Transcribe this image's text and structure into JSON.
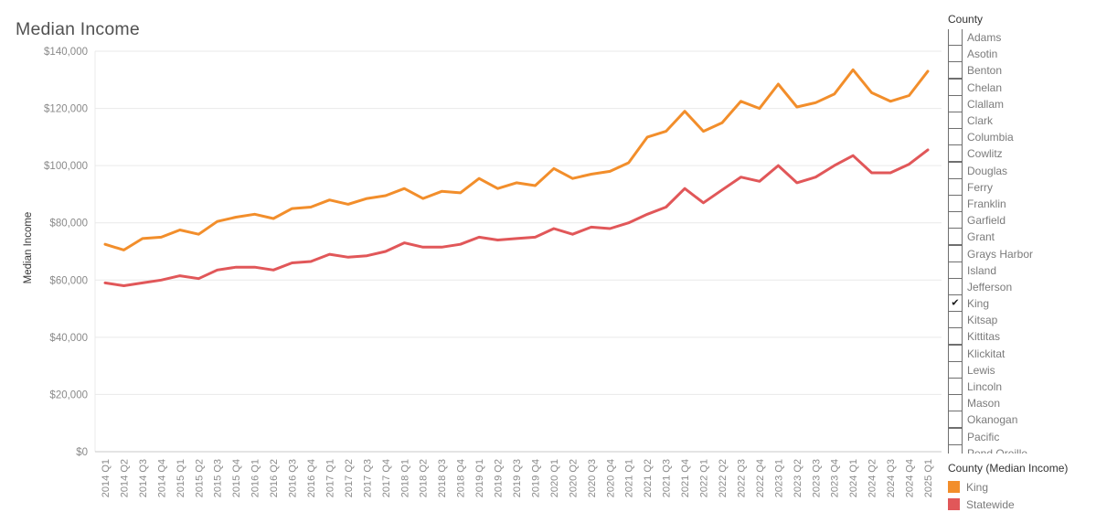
{
  "title": "Median Income",
  "filter_panel": {
    "header": "County",
    "items": [
      {
        "label": "Adams",
        "checked": false
      },
      {
        "label": "Asotin",
        "checked": false
      },
      {
        "label": "Benton",
        "checked": false
      },
      {
        "label": "Chelan",
        "checked": false
      },
      {
        "label": "Clallam",
        "checked": false
      },
      {
        "label": "Clark",
        "checked": false
      },
      {
        "label": "Columbia",
        "checked": false
      },
      {
        "label": "Cowlitz",
        "checked": false
      },
      {
        "label": "Douglas",
        "checked": false
      },
      {
        "label": "Ferry",
        "checked": false
      },
      {
        "label": "Franklin",
        "checked": false
      },
      {
        "label": "Garfield",
        "checked": false
      },
      {
        "label": "Grant",
        "checked": false
      },
      {
        "label": "Grays Harbor",
        "checked": false
      },
      {
        "label": "Island",
        "checked": false
      },
      {
        "label": "Jefferson",
        "checked": false
      },
      {
        "label": "King",
        "checked": true
      },
      {
        "label": "Kitsap",
        "checked": false
      },
      {
        "label": "Kittitas",
        "checked": false
      },
      {
        "label": "Klickitat",
        "checked": false
      },
      {
        "label": "Lewis",
        "checked": false
      },
      {
        "label": "Lincoln",
        "checked": false
      },
      {
        "label": "Mason",
        "checked": false
      },
      {
        "label": "Okanogan",
        "checked": false
      },
      {
        "label": "Pacific",
        "checked": false
      },
      {
        "label": "Pend Oreille",
        "checked": false
      }
    ]
  },
  "legend": {
    "header": "County (Median Income)",
    "entries": [
      {
        "label": "King",
        "color": "#f28e2b"
      },
      {
        "label": "Statewide",
        "color": "#e15759"
      }
    ]
  },
  "chart_data": {
    "type": "line",
    "title": "Median Income",
    "xlabel": "",
    "ylabel": "Median Income",
    "ylim": [
      0,
      140000
    ],
    "yticks": [
      0,
      20000,
      40000,
      60000,
      80000,
      100000,
      120000,
      140000
    ],
    "ytick_labels": [
      "$0",
      "$20,000",
      "$40,000",
      "$60,000",
      "$80,000",
      "$100,000",
      "$120,000",
      "$140,000"
    ],
    "grid": "horizontal",
    "legend_position": "bottom-right",
    "categories": [
      "2014 Q1",
      "2014 Q2",
      "2014 Q3",
      "2014 Q4",
      "2015 Q1",
      "2015 Q2",
      "2015 Q3",
      "2015 Q4",
      "2016 Q1",
      "2016 Q2",
      "2016 Q3",
      "2016 Q4",
      "2017 Q1",
      "2017 Q2",
      "2017 Q3",
      "2017 Q4",
      "2018 Q1",
      "2018 Q2",
      "2018 Q3",
      "2018 Q4",
      "2019 Q1",
      "2019 Q2",
      "2019 Q3",
      "2019 Q4",
      "2020 Q1",
      "2020 Q2",
      "2020 Q3",
      "2020 Q4",
      "2021 Q1",
      "2021 Q2",
      "2021 Q3",
      "2021 Q4",
      "2022 Q1",
      "2022 Q2",
      "2022 Q3",
      "2022 Q4",
      "2023 Q1",
      "2023 Q2",
      "2023 Q3",
      "2023 Q4",
      "2024 Q1",
      "2024 Q2",
      "2024 Q3",
      "2024 Q4",
      "2025 Q1"
    ],
    "series": [
      {
        "name": "King",
        "color": "#f28e2b",
        "values": [
          72500,
          70500,
          74500,
          75000,
          77500,
          76000,
          80500,
          82000,
          83000,
          81500,
          85000,
          85500,
          88000,
          86500,
          88500,
          89500,
          92000,
          88500,
          91000,
          90500,
          95500,
          92000,
          94000,
          93000,
          99000,
          95500,
          97000,
          98000,
          101000,
          110000,
          112000,
          119000,
          112000,
          115000,
          122500,
          120000,
          128500,
          120500,
          122000,
          125000,
          133500,
          125500,
          122500,
          124500,
          133000
        ]
      },
      {
        "name": "Statewide",
        "color": "#e15759",
        "values": [
          59000,
          58000,
          59000,
          60000,
          61500,
          60500,
          63500,
          64500,
          64500,
          63500,
          66000,
          66500,
          69000,
          68000,
          68500,
          70000,
          73000,
          71500,
          71500,
          72500,
          75000,
          74000,
          74500,
          75000,
          78000,
          76000,
          78500,
          78000,
          80000,
          83000,
          85500,
          92000,
          87000,
          91500,
          96000,
          94500,
          100000,
          94000,
          96000,
          100000,
          103500,
          97500,
          97500,
          100500,
          105500
        ]
      }
    ]
  }
}
